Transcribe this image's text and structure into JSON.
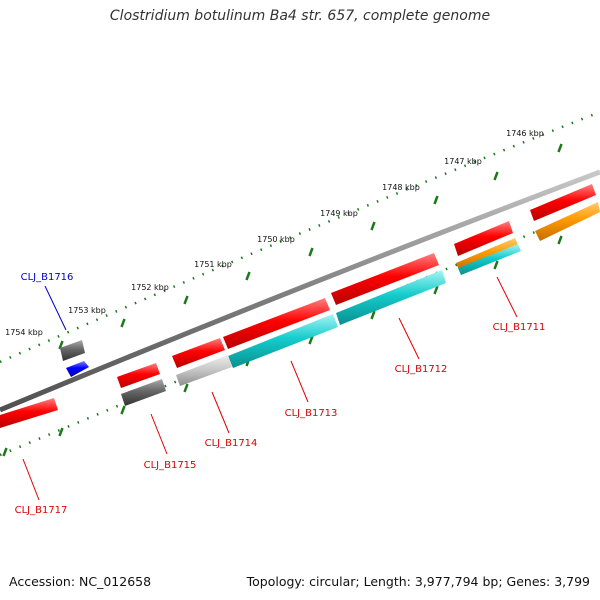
{
  "title": "Clostridium botulinum Ba4 str. 657, complete genome",
  "footer": {
    "accession": "Accession: NC_012658",
    "summary": "Topology: circular; Length: 3,977,794 bp; Genes: 3,799"
  },
  "colors": {
    "backbone": "#808080",
    "tick": "#1a7a1a",
    "label_default": "#dd0000",
    "label_highlight": "#0000cc"
  },
  "ruler": [
    {
      "label": "1746 kbp"
    },
    {
      "label": "1747 kbp"
    },
    {
      "label": "1748 kbp"
    },
    {
      "label": "1749 kbp"
    },
    {
      "label": "1750 kbp"
    },
    {
      "label": "1751 kbp"
    },
    {
      "label": "1752 kbp"
    },
    {
      "label": "1753 kbp"
    },
    {
      "label": "1754 kbp"
    }
  ],
  "genes": [
    {
      "name": "CLJ_B1711"
    },
    {
      "name": "CLJ_B1712"
    },
    {
      "name": "CLJ_B1713"
    },
    {
      "name": "CLJ_B1714"
    },
    {
      "name": "CLJ_B1715"
    },
    {
      "name": "CLJ_B1716"
    },
    {
      "name": "CLJ_B1717"
    }
  ]
}
